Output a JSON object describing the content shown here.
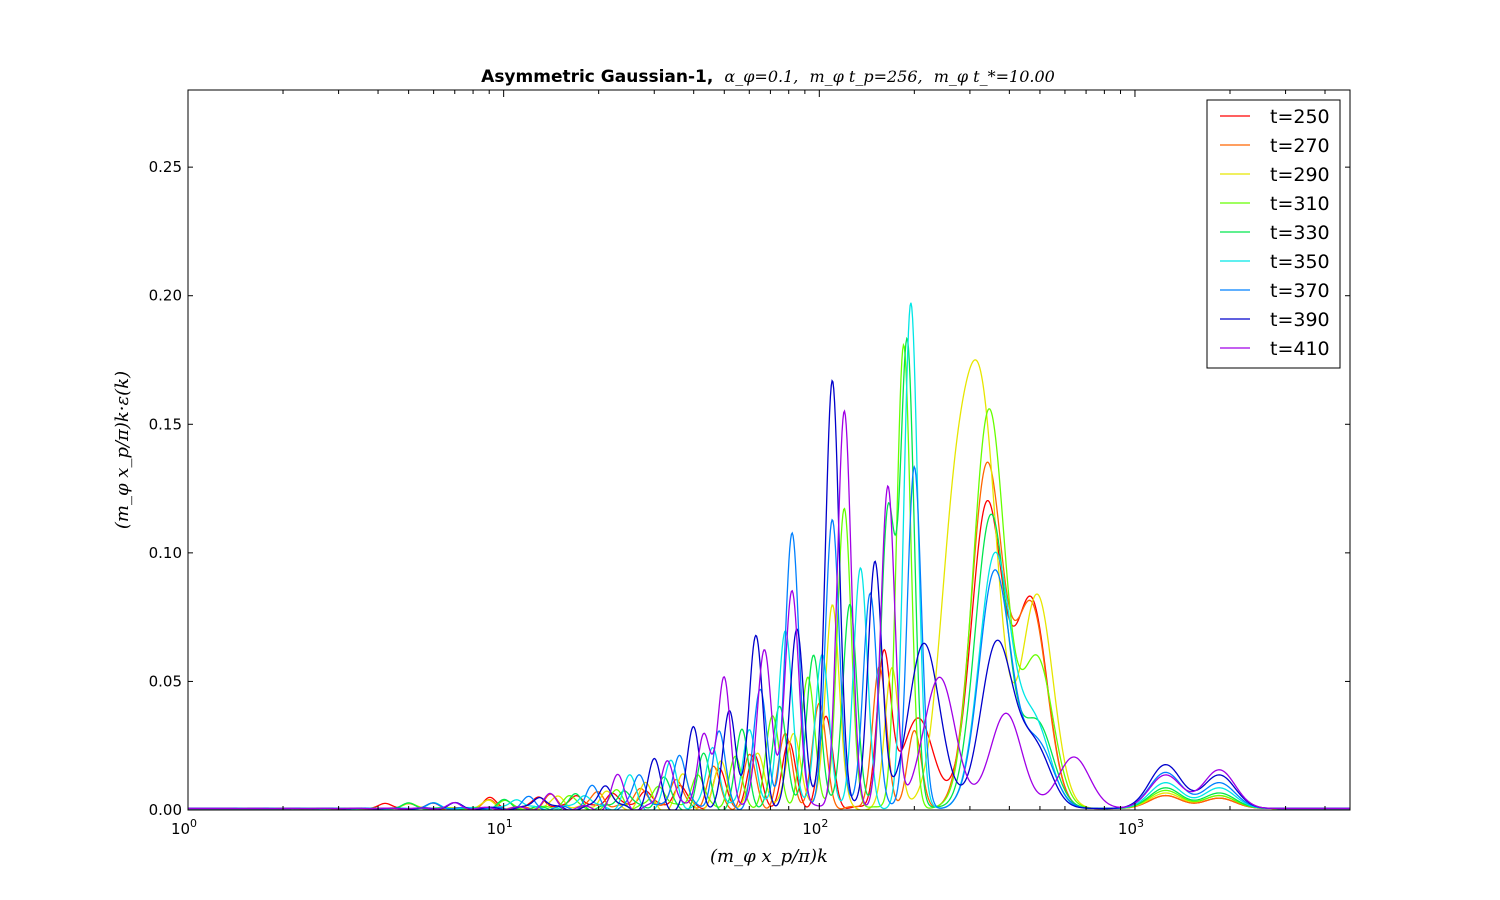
{
  "chart_data": {
    "type": "line",
    "title": {
      "bold": "Asymmetric Gaussian-1,",
      "param1": "α_φ=0.1,",
      "param2": "m_φ t_p=256,",
      "param3": "m_φ t_*=10.00"
    },
    "xlabel": "(m_φ x_p/π)k",
    "ylabel": "(m_φ x_p/π)k·ε(k)",
    "x_scale": "log",
    "xlim": [
      1,
      4800
    ],
    "ylim": [
      0,
      0.28
    ],
    "x_ticks": [
      {
        "value": 1,
        "base": "10",
        "exp": "0"
      },
      {
        "value": 10,
        "base": "10",
        "exp": "1"
      },
      {
        "value": 100,
        "base": "10",
        "exp": "2"
      },
      {
        "value": 1000,
        "base": "10",
        "exp": "3"
      }
    ],
    "y_ticks": [
      {
        "value": 0.0,
        "label": "0.00"
      },
      {
        "value": 0.05,
        "label": "0.05"
      },
      {
        "value": 0.1,
        "label": "0.10"
      },
      {
        "value": 0.15,
        "label": "0.15"
      },
      {
        "value": 0.2,
        "label": "0.20"
      },
      {
        "value": 0.25,
        "label": "0.25"
      }
    ],
    "legend_position": "top-right",
    "grid": false,
    "series": [
      {
        "name": "t=250",
        "color": "#ff0000",
        "peaks": [
          [
            4.2,
            0.002
          ],
          [
            6,
            0.002
          ],
          [
            9,
            0.004
          ],
          [
            13,
            0.005
          ],
          [
            17,
            0.006
          ],
          [
            22,
            0.007
          ],
          [
            28,
            0.008
          ],
          [
            36,
            0.01
          ],
          [
            48,
            0.015
          ],
          [
            62,
            0.02
          ],
          [
            80,
            0.025
          ],
          [
            105,
            0.035
          ],
          [
            160,
            0.058
          ],
          [
            205,
            0.035
          ],
          [
            340,
            0.118
          ],
          [
            470,
            0.08
          ],
          [
            1250,
            0.005
          ],
          [
            1850,
            0.004
          ]
        ]
      },
      {
        "name": "t=270",
        "color": "#ff6600",
        "peaks": [
          [
            5,
            0.002
          ],
          [
            9,
            0.003
          ],
          [
            14,
            0.005
          ],
          [
            20,
            0.007
          ],
          [
            27,
            0.009
          ],
          [
            35,
            0.012
          ],
          [
            46,
            0.016
          ],
          [
            60,
            0.02
          ],
          [
            78,
            0.028
          ],
          [
            100,
            0.04
          ],
          [
            155,
            0.055
          ],
          [
            200,
            0.03
          ],
          [
            340,
            0.133
          ],
          [
            470,
            0.078
          ],
          [
            1250,
            0.005
          ],
          [
            1850,
            0.004
          ]
        ]
      },
      {
        "name": "t=290",
        "color": "#e6e600",
        "peaks": [
          [
            5,
            0.002
          ],
          [
            9,
            0.003
          ],
          [
            15,
            0.005
          ],
          [
            21,
            0.007
          ],
          [
            28,
            0.009
          ],
          [
            37,
            0.012
          ],
          [
            49,
            0.018
          ],
          [
            64,
            0.022
          ],
          [
            83,
            0.03
          ],
          [
            110,
            0.08
          ],
          [
            170,
            0.055
          ],
          [
            270,
            0.108
          ],
          [
            330,
            0.141
          ],
          [
            490,
            0.083
          ],
          [
            1250,
            0.006
          ],
          [
            1850,
            0.005
          ]
        ]
      },
      {
        "name": "t=310",
        "color": "#66ff00",
        "peaks": [
          [
            5,
            0.002
          ],
          [
            10,
            0.003
          ],
          [
            16,
            0.005
          ],
          [
            23,
            0.007
          ],
          [
            31,
            0.01
          ],
          [
            41,
            0.014
          ],
          [
            54,
            0.02
          ],
          [
            71,
            0.035
          ],
          [
            92,
            0.05
          ],
          [
            120,
            0.116
          ],
          [
            185,
            0.18
          ],
          [
            345,
            0.155
          ],
          [
            490,
            0.058
          ],
          [
            1250,
            0.007
          ],
          [
            1850,
            0.005
          ]
        ]
      },
      {
        "name": "t=330",
        "color": "#00e64d",
        "peaks": [
          [
            5,
            0.002
          ],
          [
            10,
            0.003
          ],
          [
            17,
            0.005
          ],
          [
            24,
            0.008
          ],
          [
            32,
            0.012
          ],
          [
            43,
            0.02
          ],
          [
            57,
            0.03
          ],
          [
            75,
            0.04
          ],
          [
            96,
            0.06
          ],
          [
            125,
            0.08
          ],
          [
            165,
            0.115
          ],
          [
            190,
            0.18
          ],
          [
            350,
            0.114
          ],
          [
            490,
            0.033
          ],
          [
            1250,
            0.008
          ],
          [
            1850,
            0.006
          ]
        ]
      },
      {
        "name": "t=350",
        "color": "#00e6e6",
        "peaks": [
          [
            6,
            0.002
          ],
          [
            11,
            0.004
          ],
          [
            18,
            0.006
          ],
          [
            25,
            0.012
          ],
          [
            34,
            0.018
          ],
          [
            46,
            0.025
          ],
          [
            60,
            0.032
          ],
          [
            78,
            0.07
          ],
          [
            102,
            0.06
          ],
          [
            135,
            0.093
          ],
          [
            195,
            0.197
          ],
          [
            360,
            0.098
          ],
          [
            480,
            0.033
          ],
          [
            1250,
            0.01
          ],
          [
            1850,
            0.008
          ]
        ]
      },
      {
        "name": "t=370",
        "color": "#0080ff",
        "peaks": [
          [
            6,
            0.002
          ],
          [
            12,
            0.004
          ],
          [
            19,
            0.008
          ],
          [
            27,
            0.014
          ],
          [
            36,
            0.022
          ],
          [
            48,
            0.03
          ],
          [
            65,
            0.045
          ],
          [
            82,
            0.106
          ],
          [
            110,
            0.112
          ],
          [
            145,
            0.084
          ],
          [
            200,
            0.133
          ],
          [
            360,
            0.092
          ],
          [
            490,
            0.025
          ],
          [
            1250,
            0.014
          ],
          [
            1850,
            0.01
          ]
        ]
      },
      {
        "name": "t=390",
        "color": "#0000cc",
        "peaks": [
          [
            7,
            0.002
          ],
          [
            13,
            0.005
          ],
          [
            21,
            0.01
          ],
          [
            30,
            0.018
          ],
          [
            40,
            0.031
          ],
          [
            52,
            0.038
          ],
          [
            63,
            0.066
          ],
          [
            85,
            0.07
          ],
          [
            110,
            0.167
          ],
          [
            150,
            0.096
          ],
          [
            215,
            0.064
          ],
          [
            365,
            0.064
          ],
          [
            480,
            0.024
          ],
          [
            1250,
            0.017
          ],
          [
            1850,
            0.013
          ]
        ]
      },
      {
        "name": "t=410",
        "color": "#a000e6",
        "peaks": [
          [
            7,
            0.002
          ],
          [
            14,
            0.005
          ],
          [
            23,
            0.012
          ],
          [
            33,
            0.02
          ],
          [
            43,
            0.03
          ],
          [
            50,
            0.051
          ],
          [
            67,
            0.063
          ],
          [
            82,
            0.085
          ],
          [
            120,
            0.154
          ],
          [
            165,
            0.125
          ],
          [
            240,
            0.051
          ],
          [
            390,
            0.037
          ],
          [
            640,
            0.02
          ],
          [
            1250,
            0.013
          ],
          [
            1850,
            0.015
          ]
        ]
      }
    ]
  }
}
